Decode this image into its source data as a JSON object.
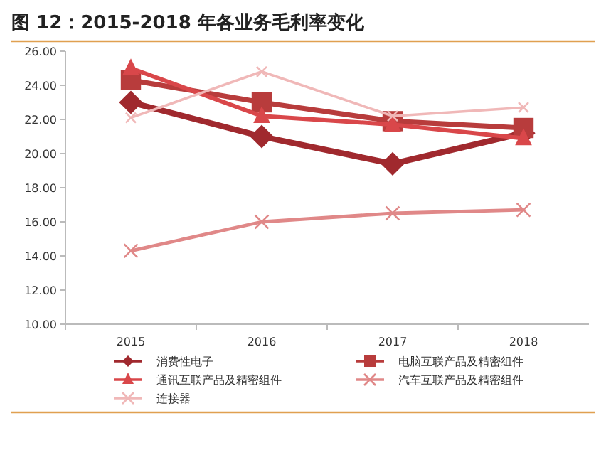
{
  "chart_data": {
    "type": "line",
    "title": "图 12：2015-2018 年各业务毛利率变化",
    "categories": [
      "2015",
      "2016",
      "2017",
      "2018"
    ],
    "ylim": [
      10,
      26
    ],
    "yticks": [
      {
        "value": 10,
        "label": "10.00"
      },
      {
        "value": 12,
        "label": "12.00"
      },
      {
        "value": 14,
        "label": "14.00"
      },
      {
        "value": 16,
        "label": "16.00"
      },
      {
        "value": 18,
        "label": "18.00"
      },
      {
        "value": 20,
        "label": "20.00"
      },
      {
        "value": 22,
        "label": "22.00"
      },
      {
        "value": 24,
        "label": "24.00"
      },
      {
        "value": 26,
        "label": "26.00"
      }
    ],
    "grid": false,
    "legend": "bottom",
    "series": [
      {
        "name": "消费性电子",
        "color": "#a0292e",
        "marker": "diamond",
        "values": [
          23.0,
          21.0,
          19.4,
          21.2
        ]
      },
      {
        "name": "电脑互联产品及精密组件",
        "color": "#b83c3c",
        "marker": "square",
        "values": [
          24.3,
          23.0,
          21.9,
          21.5
        ]
      },
      {
        "name": "通讯互联产品及精密组件",
        "color": "#d9474a",
        "marker": "triangle",
        "values": [
          25.0,
          22.2,
          21.7,
          20.9
        ]
      },
      {
        "name": "汽车互联产品及精密组件",
        "color": "#e08888",
        "marker": "cross",
        "values": [
          14.3,
          16.0,
          16.5,
          16.7
        ]
      },
      {
        "name": "连接器",
        "color": "#f0b8b8",
        "marker": "cross",
        "values": [
          22.1,
          24.8,
          22.2,
          22.7
        ]
      }
    ]
  }
}
